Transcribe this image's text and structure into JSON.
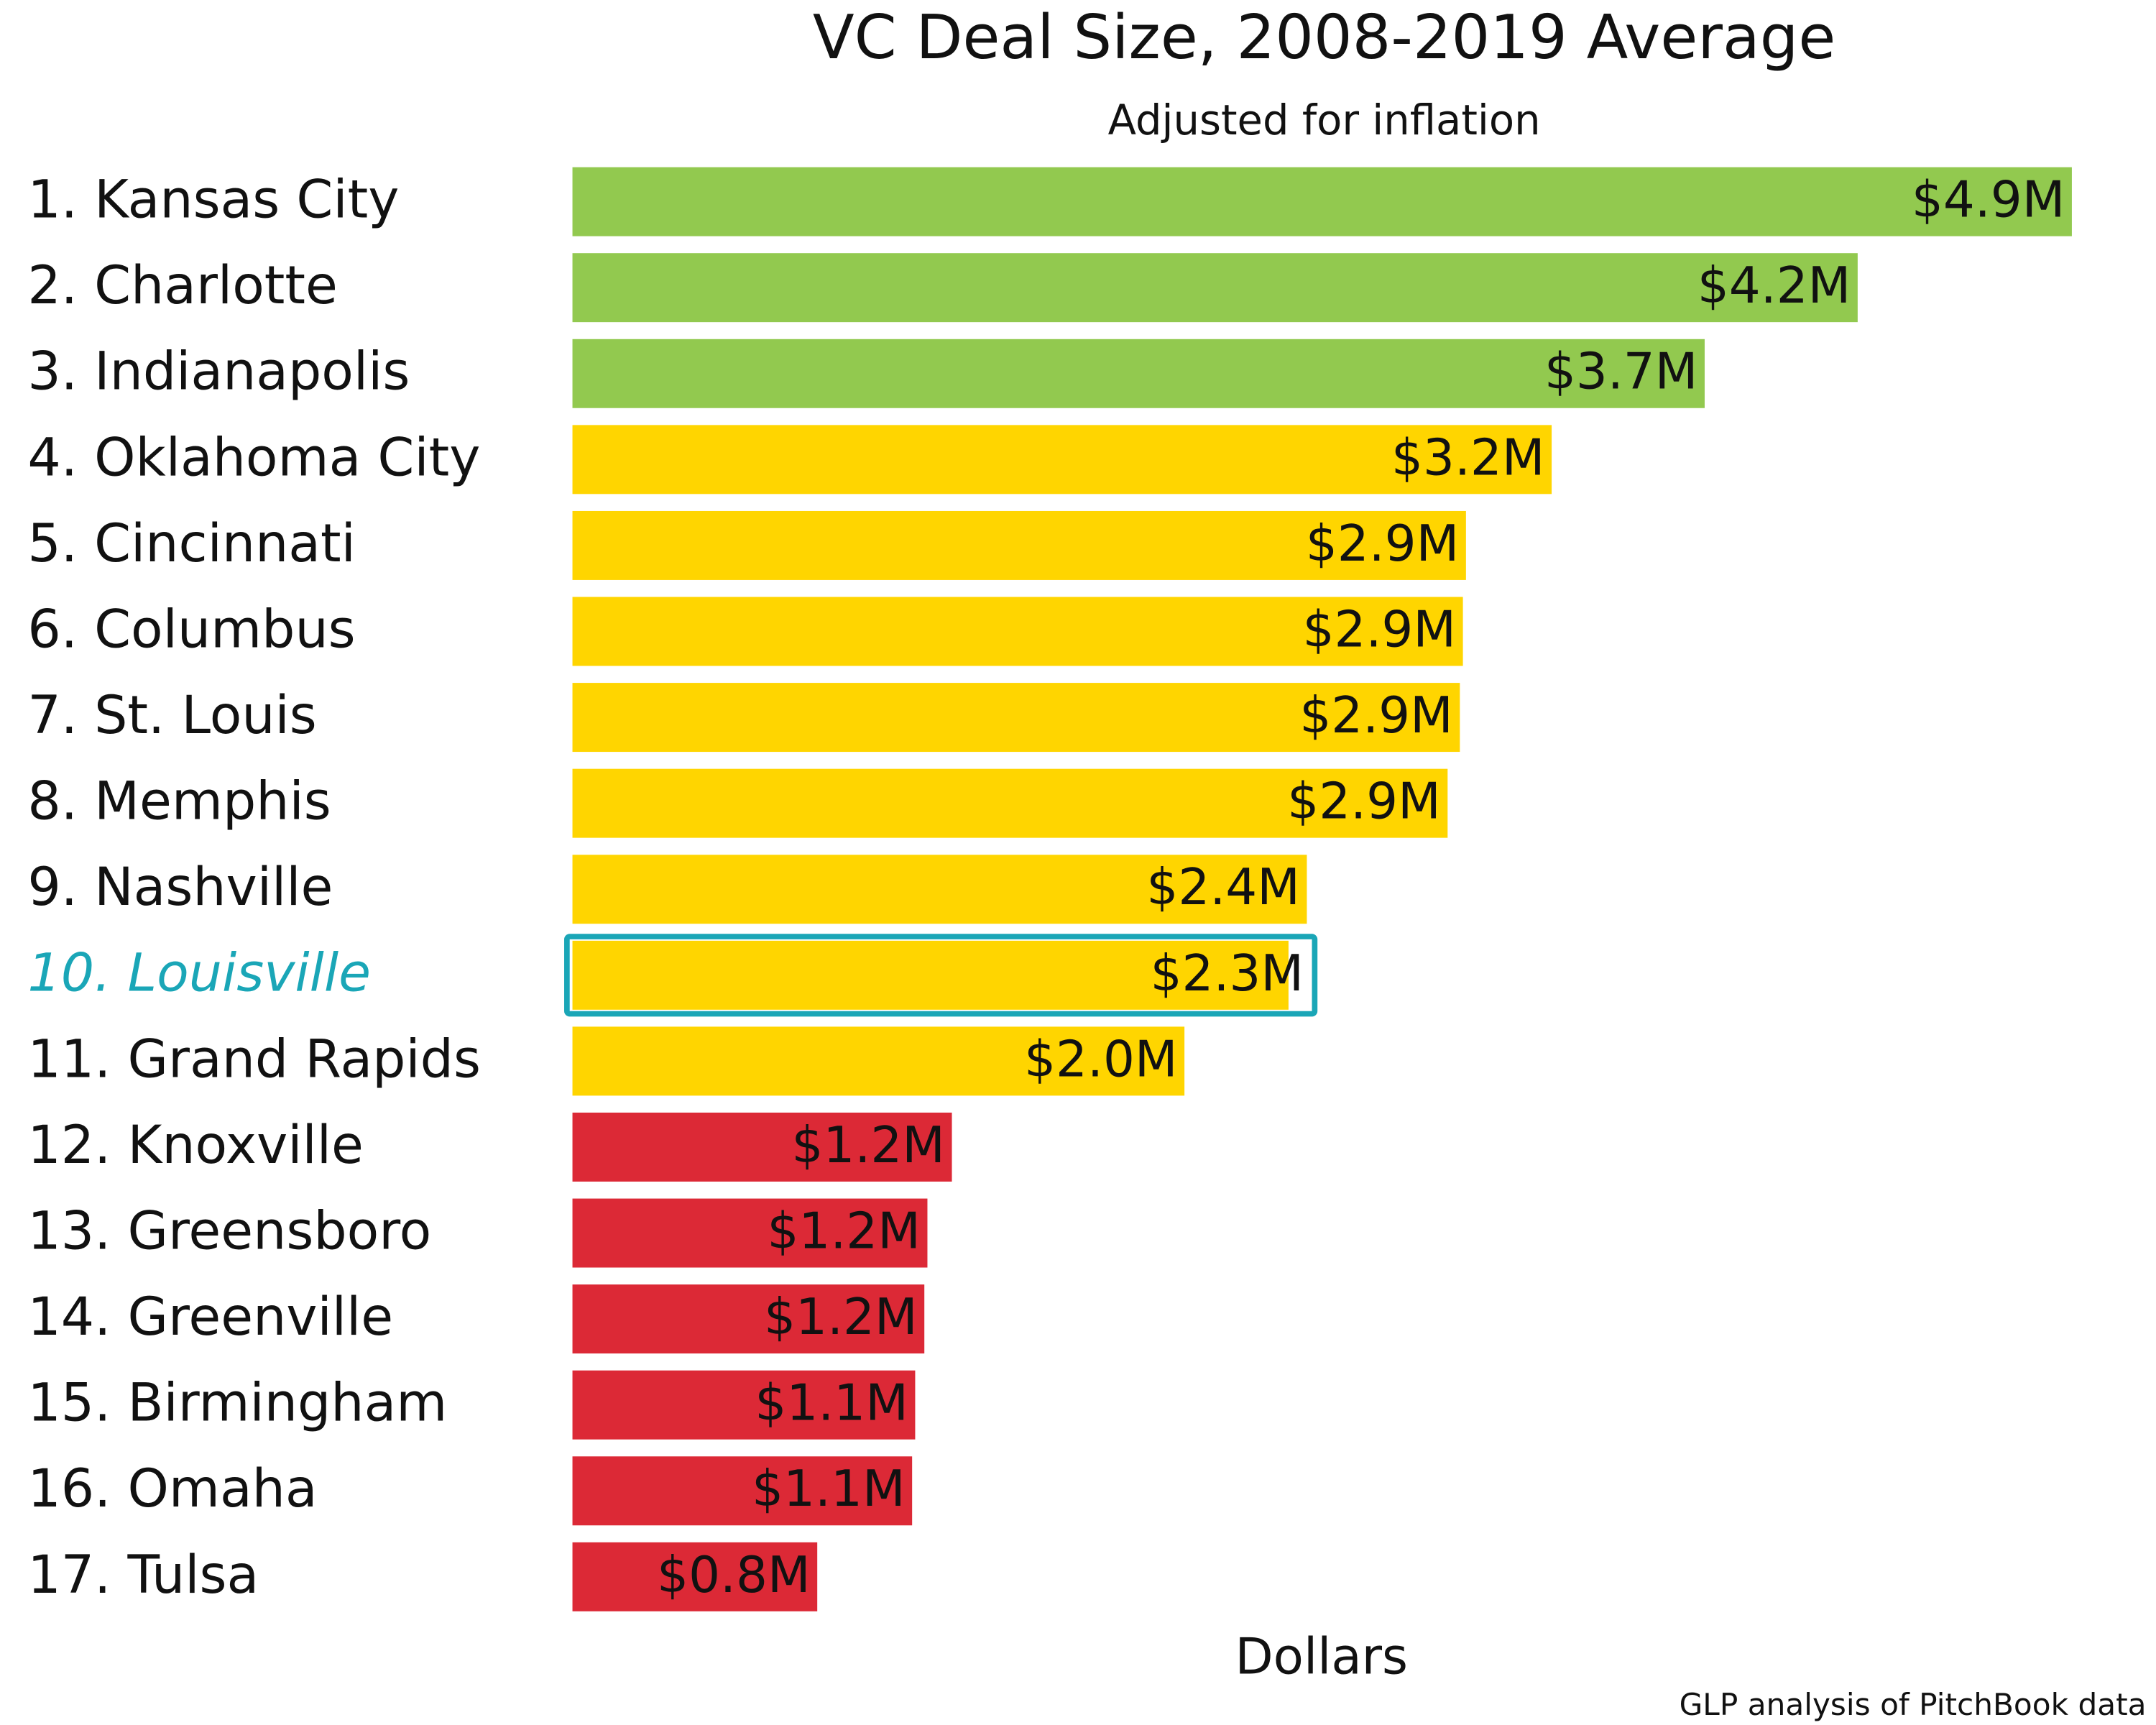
{
  "chart_data": {
    "type": "bar",
    "orientation": "horizontal",
    "title": "VC Deal Size, 2008-2019 Average",
    "subtitle": "Adjusted for inflation",
    "x_label": "Dollars",
    "source": "GLP analysis of PitchBook data",
    "categories": [
      "1. Kansas City",
      "2. Charlotte",
      "3. Indianapolis",
      "4. Oklahoma City",
      "5. Cincinnati",
      "6. Columbus",
      "7. St. Louis",
      "8. Memphis",
      "9. Nashville",
      "10. Louisville",
      "11. Grand Rapids",
      "12. Knoxville",
      "13. Greensboro",
      "14. Greenville",
      "15. Birmingham",
      "16. Omaha",
      "17. Tulsa"
    ],
    "values": [
      4.9,
      4.2,
      3.7,
      3.2,
      2.92,
      2.91,
      2.9,
      2.86,
      2.4,
      2.34,
      2.0,
      1.24,
      1.16,
      1.15,
      1.12,
      1.11,
      0.8
    ],
    "value_labels": [
      "$4.9M",
      "$4.2M",
      "$3.7M",
      "$3.2M",
      "$2.9M",
      "$2.9M",
      "$2.9M",
      "$2.9M",
      "$2.4M",
      "$2.3M",
      "$2.0M",
      "$1.2M",
      "$1.2M",
      "$1.2M",
      "$1.1M",
      "$1.1M",
      "$0.8M"
    ],
    "colors": [
      "#92c94f",
      "#92c94f",
      "#92c94f",
      "#ffd500",
      "#ffd500",
      "#ffd500",
      "#ffd500",
      "#ffd500",
      "#ffd500",
      "#ffd500",
      "#ffd500",
      "#dc2936",
      "#dc2936",
      "#dc2936",
      "#dc2936",
      "#dc2936",
      "#dc2936"
    ],
    "highlight_index": 9,
    "highlight_color": "#1aa6b7"
  }
}
